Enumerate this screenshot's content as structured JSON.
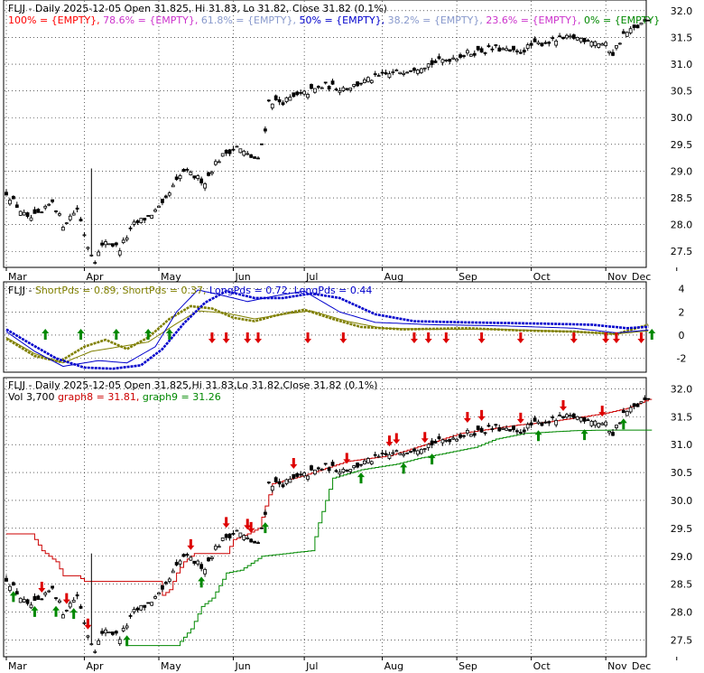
{
  "header": {
    "symbol": "FLJJ",
    "interval": "Daily",
    "date": "2025-12-05",
    "open": "31.825",
    "high": "31.83",
    "low": "31.82",
    "close": "31.82",
    "change_pct": "0.1%",
    "top_title": "FLJJ - Daily 2025-12-05 Open 31.825, Hi 31.83, Lo 31.82, Close 31.82 (0.1%)",
    "bottom_title": "FLJJ - Daily 2025-12-05 Open 31.825,Hi 31.83,Lo 31.82,Close 31.82 (0.1%)"
  },
  "fib_legend": [
    {
      "text": "100% = {EMPTY},",
      "color": "#ff0000"
    },
    {
      "text": "78.6% = {EMPTY},",
      "color": "#cc33cc"
    },
    {
      "text": "61.8% = {EMPTY},",
      "color": "#8899cc"
    },
    {
      "text": "50% = {EMPTY},",
      "color": "#0000cc"
    },
    {
      "text": "38.2% = {EMPTY},",
      "color": "#8899cc"
    },
    {
      "text": "23.6% = {EMPTY},",
      "color": "#cc33cc"
    },
    {
      "text": "0% = {EMPTY}",
      "color": "#008800"
    }
  ],
  "osc_legend": [
    {
      "text": "FLJJ - ",
      "color": "#000000"
    },
    {
      "text": "ShortPds = 0.89,",
      "color": "#808000"
    },
    {
      "text": "ShortPds = 0.37,",
      "color": "#808000"
    },
    {
      "text": "LongPds = 0.72,",
      "color": "#0000cc"
    },
    {
      "text": "LongPds = 0.44",
      "color": "#0000cc"
    }
  ],
  "bottom_legend2": [
    {
      "text": "Vol 3,700",
      "color": "#000000"
    },
    {
      "text": "graph8 = 31.81,",
      "color": "#cc0000"
    },
    {
      "text": "graph9 = 31.26",
      "color": "#008800"
    }
  ],
  "x_months": [
    "Mar",
    "Apr",
    "May",
    "Jun",
    "Jul",
    "Aug",
    "Sep",
    "Oct",
    "Nov",
    "Dec"
  ],
  "colors": {
    "up_arrow": "#008800",
    "down_arrow": "#dd0000",
    "short": "#808000",
    "long": "#0000cc",
    "graph8": "#cc0000",
    "graph9": "#008800"
  },
  "chart_data": [
    {
      "type": "candlestick",
      "name": "price",
      "ylim": [
        27.2,
        32.2
      ],
      "y_ticks": [
        "27.5",
        "28.0",
        "28.5",
        "29.0",
        "29.5",
        "30.0",
        "30.5",
        "31.0",
        "31.5",
        "32.0"
      ],
      "x_labels": [
        "Mar",
        "Apr",
        "May",
        "Jun",
        "Jul",
        "Aug",
        "Sep",
        "Oct",
        "Nov",
        "Dec"
      ],
      "anchors": [
        {
          "d": 0,
          "p": 28.6
        },
        {
          "d": 6,
          "p": 28.1
        },
        {
          "d": 10,
          "p": 28.2
        },
        {
          "d": 13,
          "p": 28.45
        },
        {
          "d": 16,
          "p": 28.0
        },
        {
          "d": 20,
          "p": 28.3
        },
        {
          "d": 23,
          "p": 27.6
        },
        {
          "d": 25,
          "p": 27.35
        },
        {
          "d": 28,
          "p": 27.7
        },
        {
          "d": 32,
          "p": 27.55
        },
        {
          "d": 36,
          "p": 28.0
        },
        {
          "d": 40,
          "p": 28.15
        },
        {
          "d": 44,
          "p": 28.35
        },
        {
          "d": 47,
          "p": 28.7
        },
        {
          "d": 50,
          "p": 29.0
        },
        {
          "d": 53,
          "p": 28.9
        },
        {
          "d": 56,
          "p": 28.8
        },
        {
          "d": 59,
          "p": 29.15
        },
        {
          "d": 62,
          "p": 29.35
        },
        {
          "d": 65,
          "p": 29.45
        },
        {
          "d": 68,
          "p": 29.3
        },
        {
          "d": 71,
          "p": 29.2
        },
        {
          "d": 73,
          "p": 29.8
        },
        {
          "d": 74,
          "p": 30.3
        },
        {
          "d": 78,
          "p": 30.3
        },
        {
          "d": 84,
          "p": 30.45
        },
        {
          "d": 90,
          "p": 30.6
        },
        {
          "d": 94,
          "p": 30.55
        },
        {
          "d": 98,
          "p": 30.6
        },
        {
          "d": 104,
          "p": 30.75
        },
        {
          "d": 110,
          "p": 30.85
        },
        {
          "d": 116,
          "p": 30.95
        },
        {
          "d": 122,
          "p": 31.05
        },
        {
          "d": 130,
          "p": 31.2
        },
        {
          "d": 138,
          "p": 31.3
        },
        {
          "d": 144,
          "p": 31.2
        },
        {
          "d": 148,
          "p": 31.35
        },
        {
          "d": 155,
          "p": 31.45
        },
        {
          "d": 160,
          "p": 31.5
        },
        {
          "d": 165,
          "p": 31.45
        },
        {
          "d": 169,
          "p": 31.35
        },
        {
          "d": 171,
          "p": 31.2
        },
        {
          "d": 174,
          "p": 31.55
        },
        {
          "d": 178,
          "p": 31.7
        },
        {
          "d": 181,
          "p": 31.82
        }
      ],
      "wicks": [
        {
          "d": 24,
          "hi": 29.05,
          "lo": 27.4
        }
      ],
      "last": {
        "open": 31.825,
        "high": 31.83,
        "low": 31.82,
        "close": 31.82
      }
    },
    {
      "type": "line",
      "name": "oscillator",
      "ylim": [
        -3.2,
        4.6
      ],
      "y_ticks": [
        "-2",
        "0",
        "2",
        "4"
      ],
      "series": [
        {
          "name": "ShortPds",
          "color": "#808000",
          "last": 0.89,
          "anchors": [
            {
              "d": 0,
              "v": -0.3
            },
            {
              "d": 8,
              "v": -1.8
            },
            {
              "d": 15,
              "v": -2.3
            },
            {
              "d": 22,
              "v": -1.0
            },
            {
              "d": 28,
              "v": -0.4
            },
            {
              "d": 34,
              "v": -1.2
            },
            {
              "d": 40,
              "v": -0.2
            },
            {
              "d": 46,
              "v": 1.4
            },
            {
              "d": 52,
              "v": 2.5
            },
            {
              "d": 58,
              "v": 2.3
            },
            {
              "d": 64,
              "v": 1.5
            },
            {
              "d": 70,
              "v": 1.2
            },
            {
              "d": 76,
              "v": 1.7
            },
            {
              "d": 84,
              "v": 2.2
            },
            {
              "d": 92,
              "v": 1.4
            },
            {
              "d": 100,
              "v": 0.7
            },
            {
              "d": 112,
              "v": 0.5
            },
            {
              "d": 130,
              "v": 0.6
            },
            {
              "d": 145,
              "v": 0.4
            },
            {
              "d": 160,
              "v": 0.3
            },
            {
              "d": 172,
              "v": 0.1
            },
            {
              "d": 181,
              "v": 0.89
            }
          ]
        },
        {
          "name": "ShortPds",
          "color": "#808000",
          "last": 0.37,
          "anchors": [
            {
              "d": 0,
              "v": -0.2
            },
            {
              "d": 8,
              "v": -1.6
            },
            {
              "d": 16,
              "v": -2.4
            },
            {
              "d": 24,
              "v": -1.4
            },
            {
              "d": 32,
              "v": -1.0
            },
            {
              "d": 40,
              "v": -0.6
            },
            {
              "d": 48,
              "v": 1.0
            },
            {
              "d": 54,
              "v": 2.1
            },
            {
              "d": 62,
              "v": 1.9
            },
            {
              "d": 70,
              "v": 1.4
            },
            {
              "d": 78,
              "v": 1.8
            },
            {
              "d": 86,
              "v": 2.1
            },
            {
              "d": 96,
              "v": 1.2
            },
            {
              "d": 106,
              "v": 0.6
            },
            {
              "d": 120,
              "v": 0.5
            },
            {
              "d": 140,
              "v": 0.5
            },
            {
              "d": 160,
              "v": 0.3
            },
            {
              "d": 172,
              "v": 0.1
            },
            {
              "d": 181,
              "v": 0.37
            }
          ]
        },
        {
          "name": "LongPds",
          "color": "#0000cc",
          "last": 0.72,
          "anchors": [
            {
              "d": 0,
              "v": 0.5
            },
            {
              "d": 6,
              "v": -0.6
            },
            {
              "d": 14,
              "v": -2.0
            },
            {
              "d": 22,
              "v": -2.8
            },
            {
              "d": 30,
              "v": -2.9
            },
            {
              "d": 38,
              "v": -2.6
            },
            {
              "d": 44,
              "v": -1.2
            },
            {
              "d": 50,
              "v": 1.0
            },
            {
              "d": 56,
              "v": 2.8
            },
            {
              "d": 62,
              "v": 3.8
            },
            {
              "d": 70,
              "v": 3.2
            },
            {
              "d": 78,
              "v": 3.2
            },
            {
              "d": 86,
              "v": 3.6
            },
            {
              "d": 94,
              "v": 3.2
            },
            {
              "d": 104,
              "v": 1.8
            },
            {
              "d": 115,
              "v": 1.2
            },
            {
              "d": 130,
              "v": 1.1
            },
            {
              "d": 150,
              "v": 1.0
            },
            {
              "d": 165,
              "v": 0.9
            },
            {
              "d": 175,
              "v": 0.6
            },
            {
              "d": 181,
              "v": 0.72
            }
          ]
        },
        {
          "name": "LongPds",
          "color": "#0000cc",
          "last": 0.44,
          "anchors": [
            {
              "d": 0,
              "v": 0.3
            },
            {
              "d": 8,
              "v": -1.4
            },
            {
              "d": 16,
              "v": -2.7
            },
            {
              "d": 26,
              "v": -2.2
            },
            {
              "d": 34,
              "v": -2.4
            },
            {
              "d": 42,
              "v": -1.0
            },
            {
              "d": 48,
              "v": 2.0
            },
            {
              "d": 54,
              "v": 3.9
            },
            {
              "d": 60,
              "v": 3.5
            },
            {
              "d": 68,
              "v": 2.9
            },
            {
              "d": 76,
              "v": 3.4
            },
            {
              "d": 84,
              "v": 3.8
            },
            {
              "d": 94,
              "v": 2.0
            },
            {
              "d": 104,
              "v": 1.1
            },
            {
              "d": 120,
              "v": 0.9
            },
            {
              "d": 140,
              "v": 0.8
            },
            {
              "d": 160,
              "v": 0.6
            },
            {
              "d": 172,
              "v": 0.2
            },
            {
              "d": 181,
              "v": 0.44
            }
          ]
        }
      ],
      "up_arrows_d": [
        11,
        21,
        31,
        40,
        46,
        182
      ],
      "down_arrows_d": [
        58,
        62,
        68,
        71,
        85,
        95,
        115,
        119,
        124,
        134,
        145,
        160,
        169,
        172,
        179
      ]
    },
    {
      "type": "candlestick",
      "name": "price_with_stops",
      "ylim": [
        27.2,
        32.2
      ],
      "y_ticks": [
        "27.5",
        "28.0",
        "28.5",
        "29.0",
        "29.5",
        "30.0",
        "30.5",
        "31.0",
        "31.5",
        "32.0"
      ],
      "graph8_anchors": [
        {
          "d": 0,
          "v": 29.4
        },
        {
          "d": 7,
          "v": 29.4
        },
        {
          "d": 10,
          "v": 29.1
        },
        {
          "d": 14,
          "v": 28.9
        },
        {
          "d": 16,
          "v": 28.65
        },
        {
          "d": 20,
          "v": 28.65
        },
        {
          "d": 22,
          "v": 28.55
        },
        {
          "d": 43,
          "v": 28.55
        },
        {
          "d": 44,
          "v": 28.3
        },
        {
          "d": 46,
          "v": 28.4
        },
        {
          "d": 48,
          "v": 28.7
        },
        {
          "d": 50,
          "v": 28.9
        },
        {
          "d": 53,
          "v": 29.05
        },
        {
          "d": 62,
          "v": 29.05
        },
        {
          "d": 64,
          "v": 29.3
        },
        {
          "d": 68,
          "v": 29.4
        },
        {
          "d": 71,
          "v": 29.5
        },
        {
          "d": 75,
          "v": 30.3
        },
        {
          "d": 84,
          "v": 30.45
        },
        {
          "d": 96,
          "v": 30.7
        },
        {
          "d": 108,
          "v": 30.8
        },
        {
          "d": 118,
          "v": 31.0
        },
        {
          "d": 128,
          "v": 31.2
        },
        {
          "d": 144,
          "v": 31.35
        },
        {
          "d": 152,
          "v": 31.4
        },
        {
          "d": 168,
          "v": 31.55
        },
        {
          "d": 175,
          "v": 31.65
        },
        {
          "d": 181,
          "v": 31.81
        }
      ],
      "graph9_anchors": [
        {
          "d": 34,
          "v": 27.4
        },
        {
          "d": 48,
          "v": 27.4
        },
        {
          "d": 52,
          "v": 27.7
        },
        {
          "d": 55,
          "v": 28.1
        },
        {
          "d": 58,
          "v": 28.25
        },
        {
          "d": 62,
          "v": 28.7
        },
        {
          "d": 66,
          "v": 28.75
        },
        {
          "d": 72,
          "v": 29.0
        },
        {
          "d": 86,
          "v": 29.1
        },
        {
          "d": 88,
          "v": 29.6
        },
        {
          "d": 90,
          "v": 30.0
        },
        {
          "d": 92,
          "v": 30.4
        },
        {
          "d": 100,
          "v": 30.55
        },
        {
          "d": 110,
          "v": 30.65
        },
        {
          "d": 116,
          "v": 30.75
        },
        {
          "d": 124,
          "v": 30.85
        },
        {
          "d": 132,
          "v": 30.95
        },
        {
          "d": 138,
          "v": 31.1
        },
        {
          "d": 146,
          "v": 31.2
        },
        {
          "d": 160,
          "v": 31.25
        },
        {
          "d": 170,
          "v": 31.26
        },
        {
          "d": 181,
          "v": 31.26
        }
      ],
      "up_arrows_d": [
        2,
        8,
        14,
        19,
        34,
        55,
        73,
        100,
        112,
        120,
        150,
        163,
        174
      ],
      "down_arrows_d": [
        10,
        17,
        23,
        52,
        62,
        68,
        69,
        81,
        96,
        108,
        110,
        118,
        130,
        134,
        145,
        157,
        168
      ]
    }
  ]
}
